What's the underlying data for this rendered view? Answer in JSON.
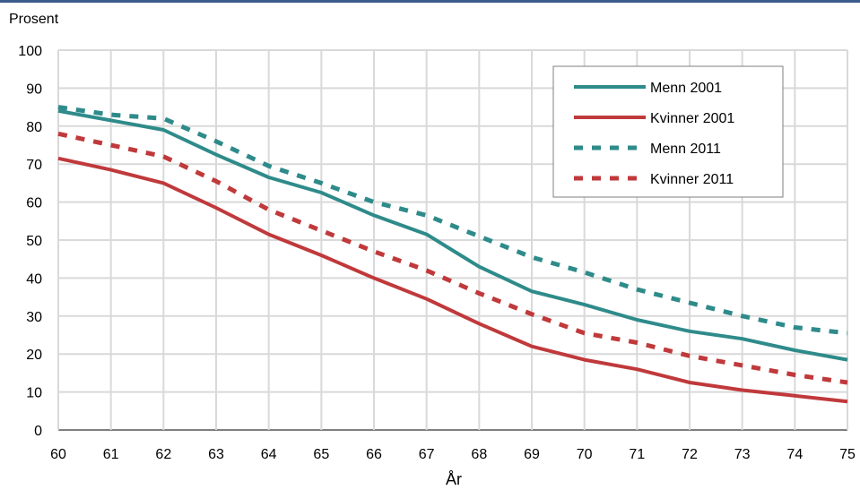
{
  "chart_data": {
    "type": "line",
    "ylabel": "Prosent",
    "xlabel": "År",
    "ylim": [
      0,
      100
    ],
    "yticks": [
      0,
      10,
      20,
      30,
      40,
      50,
      60,
      70,
      80,
      90,
      100
    ],
    "x": [
      60,
      61,
      62,
      63,
      64,
      65,
      66,
      67,
      68,
      69,
      70,
      71,
      72,
      73,
      74,
      75
    ],
    "grid": true,
    "legend_position": "top-right",
    "series": [
      {
        "name": "Menn  2001",
        "color": "#2e8b8a",
        "style": "solid",
        "values": [
          84,
          81.5,
          79,
          72.5,
          66.5,
          62.5,
          56.5,
          51.5,
          43,
          36.5,
          33,
          29,
          26,
          24,
          21,
          18.5
        ]
      },
      {
        "name": "Kvinner 2001",
        "color": "#c0393b",
        "style": "solid",
        "values": [
          71.5,
          68.5,
          65,
          58.5,
          51.5,
          46,
          40,
          34.5,
          28,
          22,
          18.5,
          16,
          12.5,
          10.5,
          9,
          7.5
        ]
      },
      {
        "name": "Menn 2011",
        "color": "#2e8b8a",
        "style": "dashed",
        "values": [
          85,
          83,
          82,
          76,
          69.5,
          65,
          60,
          56.5,
          51,
          45.5,
          41.5,
          37,
          33.5,
          30,
          27,
          25.5
        ]
      },
      {
        "name": "Kvinner 2011",
        "color": "#c0393b",
        "style": "dashed",
        "values": [
          78,
          75,
          72,
          65.5,
          58,
          52.5,
          47,
          42,
          36,
          30.5,
          25.5,
          23,
          19.5,
          17,
          14.5,
          12.5
        ]
      }
    ]
  }
}
